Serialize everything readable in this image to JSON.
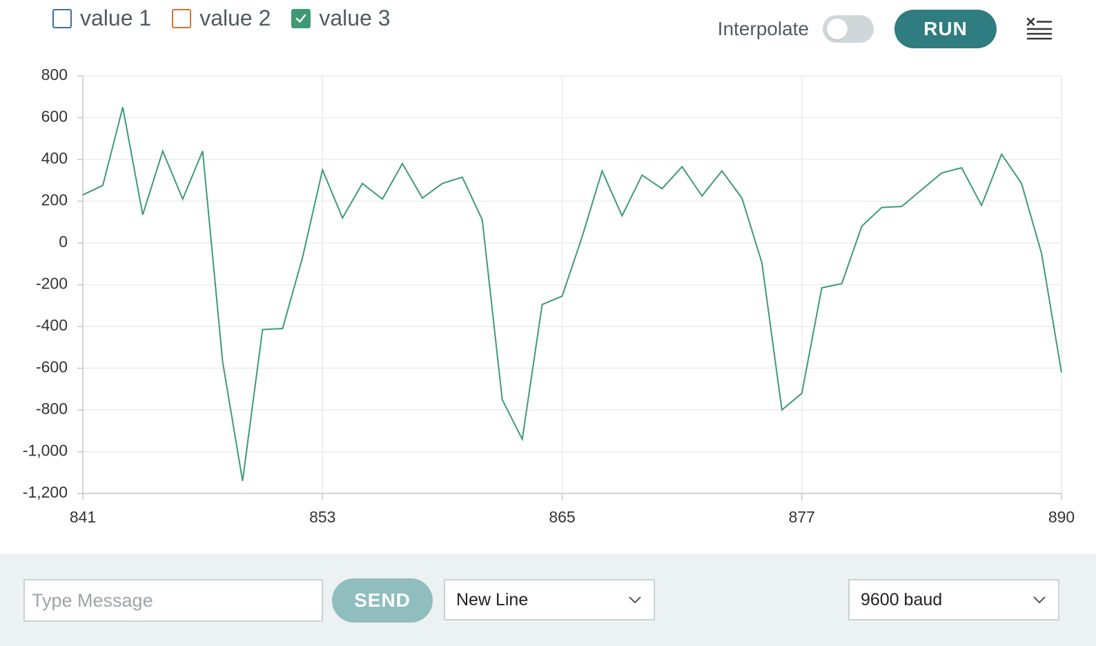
{
  "legend": {
    "items": [
      {
        "label": "value 1",
        "color": "#3c6fa6",
        "checked": false
      },
      {
        "label": "value 2",
        "color": "#d5733a",
        "checked": false
      },
      {
        "label": "value 3",
        "color": "#3d9a74",
        "checked": true
      }
    ]
  },
  "controls": {
    "interpolate_label": "Interpolate",
    "interpolate_on": false,
    "run_label": "RUN",
    "run_color": "#2f7d80",
    "clear_icon": "clear-list-icon"
  },
  "chart_data": {
    "type": "line",
    "ylim": [
      -1200,
      800
    ],
    "yticks": [
      "800",
      "600",
      "400",
      "200",
      "0",
      "-200",
      "-400",
      "-600",
      "-800",
      "-1,000",
      "-1,200"
    ],
    "ytick_values": [
      800,
      600,
      400,
      200,
      0,
      -200,
      -400,
      -600,
      -800,
      -1000,
      -1200
    ],
    "xlim": [
      841,
      890
    ],
    "xticks": [
      "841",
      "853",
      "865",
      "877",
      "890"
    ],
    "xtick_values": [
      841,
      853,
      865,
      877,
      890
    ],
    "grid": true,
    "series": [
      {
        "name": "value 3",
        "color": "#3d9a74",
        "x": [
          841,
          842,
          843,
          844,
          845,
          846,
          847,
          848,
          849,
          850,
          851,
          852,
          853,
          854,
          855,
          856,
          857,
          858,
          859,
          860,
          861,
          862,
          863,
          864,
          865,
          866,
          867,
          868,
          869,
          870,
          871,
          872,
          873,
          874,
          875,
          876,
          877,
          878,
          879,
          880,
          881,
          882,
          883,
          884,
          885,
          886,
          887,
          888,
          889,
          890
        ],
        "y": [
          230,
          275,
          650,
          135,
          440,
          210,
          440,
          -570,
          -1140,
          -415,
          -410,
          -70,
          350,
          120,
          285,
          210,
          380,
          215,
          285,
          315,
          110,
          -750,
          -940,
          -295,
          -255,
          30,
          345,
          130,
          325,
          260,
          365,
          225,
          345,
          215,
          -95,
          -800,
          -720,
          -215,
          -195,
          80,
          170,
          175,
          255,
          335,
          360,
          180,
          425,
          285,
          -50,
          -620
        ]
      }
    ]
  },
  "footer": {
    "message_placeholder": "Type Message",
    "send_label": "SEND",
    "send_color": "#90bdbd",
    "line_ending": "New Line",
    "baud": "9600 baud"
  }
}
